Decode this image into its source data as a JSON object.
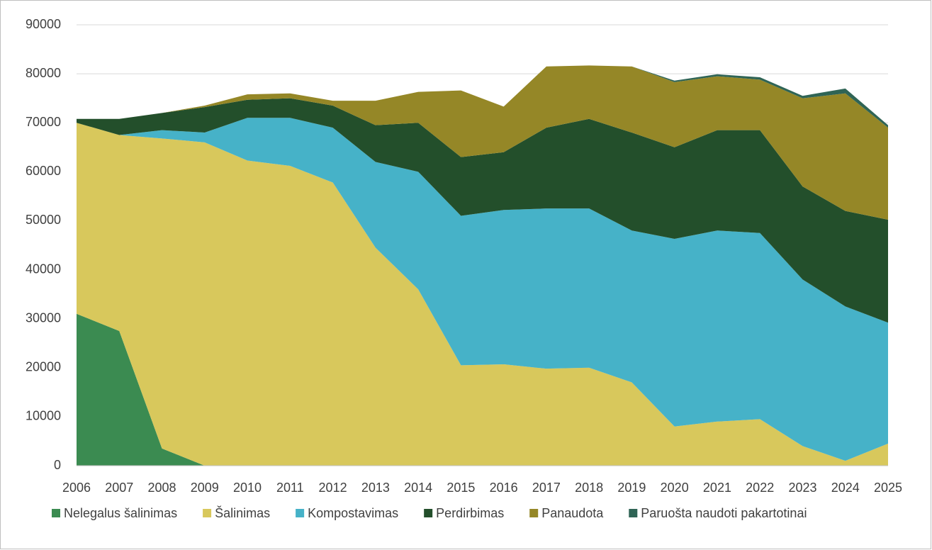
{
  "chart_data": {
    "type": "stacked_area",
    "categories": [
      "2006",
      "2007",
      "2008",
      "2009",
      "2010",
      "2011",
      "2012",
      "2013",
      "2014",
      "2015",
      "2016",
      "2017",
      "2018",
      "2019",
      "2020",
      "2021",
      "2022",
      "2023",
      "2024",
      "2025"
    ],
    "series": [
      {
        "name": "Nelegalus šalinimas",
        "color": "#3b8b51",
        "values": [
          31000,
          27500,
          3500,
          0,
          0,
          0,
          0,
          0,
          0,
          0,
          0,
          0,
          0,
          0,
          0,
          0,
          0,
          0,
          0,
          0
        ]
      },
      {
        "name": "Šalinimas",
        "color": "#d8c85c",
        "values": [
          39000,
          40000,
          63300,
          66000,
          62300,
          61200,
          57800,
          44500,
          36000,
          20500,
          20700,
          19800,
          20000,
          17000,
          8000,
          9000,
          9500,
          4000,
          1000,
          4500
        ]
      },
      {
        "name": "Kompostavimas",
        "color": "#46b2c8",
        "values": [
          0,
          0,
          1700,
          2000,
          8700,
          9800,
          11200,
          17500,
          24000,
          30500,
          31500,
          32700,
          32500,
          31000,
          38300,
          39000,
          38000,
          34000,
          31500,
          24700
        ]
      },
      {
        "name": "Perdirbimas",
        "color": "#234f2b",
        "values": [
          800,
          3300,
          3500,
          5200,
          3700,
          4000,
          4500,
          7500,
          10000,
          12000,
          11800,
          16500,
          18300,
          20000,
          18700,
          20500,
          21000,
          19000,
          19500,
          21000
        ]
      },
      {
        "name": "Panaudota",
        "color": "#958727",
        "values": [
          0,
          0,
          0,
          300,
          1100,
          1000,
          1000,
          5000,
          6300,
          13600,
          9300,
          12500,
          10900,
          13500,
          13300,
          11000,
          10300,
          18000,
          24000,
          18800
        ]
      },
      {
        "name": "Paruošta naudoti pakartotinai",
        "color": "#2f6455",
        "values": [
          0,
          0,
          0,
          0,
          0,
          0,
          0,
          0,
          0,
          0,
          0,
          0,
          0,
          0,
          300,
          400,
          500,
          500,
          1000,
          500
        ]
      }
    ],
    "ylim": [
      0,
      90000
    ],
    "yticks": [
      0,
      10000,
      20000,
      30000,
      40000,
      50000,
      60000,
      70000,
      80000,
      90000
    ],
    "grid": true,
    "legend": "bottom"
  }
}
